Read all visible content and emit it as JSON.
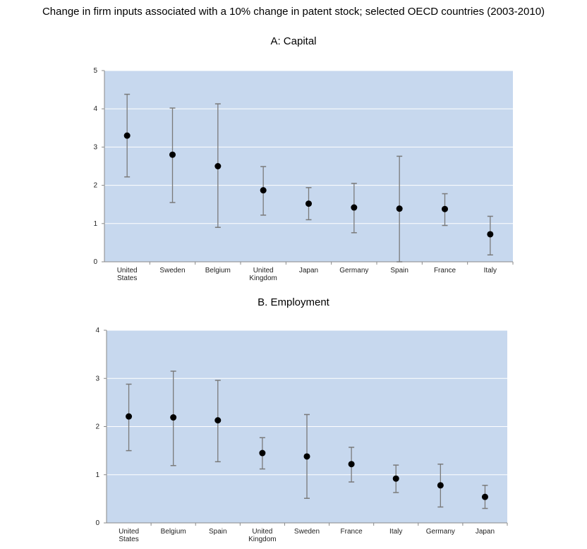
{
  "title": "Change in firm inputs associated with a 10% change in patent stock; selected OECD countries (2003-2010)",
  "colors": {
    "plot_bg": "#c7d8ee",
    "gridline": "#ffffff",
    "marker": "#000000",
    "errorbar": "#7a7a7a",
    "axis": "#888888"
  },
  "chart_data": [
    {
      "type": "scatter",
      "title": "A: Capital",
      "ylim": [
        0,
        5
      ],
      "yticks": [
        "0",
        "1",
        "2",
        "3",
        "4",
        "5"
      ],
      "grid": true,
      "categories": [
        "United States",
        "Sweden",
        "Belgium",
        "United Kingdom",
        "Japan",
        "Germany",
        "Spain",
        "France",
        "Italy"
      ],
      "category_labels": [
        [
          "United",
          "States"
        ],
        [
          "Sweden"
        ],
        [
          "Belgium"
        ],
        [
          "United",
          "Kingdom"
        ],
        [
          "Japan"
        ],
        [
          "Germany"
        ],
        [
          "Spain"
        ],
        [
          "France"
        ],
        [
          "Italy"
        ]
      ],
      "values": [
        3.3,
        2.8,
        2.5,
        1.87,
        1.52,
        1.42,
        1.39,
        1.38,
        0.72
      ],
      "lower": [
        2.22,
        1.55,
        0.9,
        1.22,
        1.1,
        0.76,
        0.0,
        0.95,
        0.18
      ],
      "upper": [
        4.38,
        4.02,
        4.13,
        2.49,
        1.94,
        2.05,
        2.76,
        1.78,
        1.19
      ]
    },
    {
      "type": "scatter",
      "title": "B. Employment",
      "ylim": [
        0,
        4
      ],
      "yticks": [
        "0",
        "1",
        "2",
        "3",
        "4"
      ],
      "grid": true,
      "categories": [
        "United States",
        "Belgium",
        "Spain",
        "United Kingdom",
        "Sweden",
        "France",
        "Italy",
        "Germany",
        "Japan"
      ],
      "category_labels": [
        [
          "United",
          "States"
        ],
        [
          "Belgium"
        ],
        [
          "Spain"
        ],
        [
          "United",
          "Kingdom"
        ],
        [
          "Sweden"
        ],
        [
          "France"
        ],
        [
          "Italy"
        ],
        [
          "Germany"
        ],
        [
          "Japan"
        ]
      ],
      "values": [
        2.21,
        2.19,
        2.13,
        1.45,
        1.38,
        1.22,
        0.92,
        0.78,
        0.54
      ],
      "lower": [
        1.5,
        1.19,
        1.27,
        1.12,
        0.51,
        0.85,
        0.63,
        0.33,
        0.3
      ],
      "upper": [
        2.88,
        3.15,
        2.96,
        1.77,
        2.25,
        1.57,
        1.2,
        1.22,
        0.78
      ]
    }
  ]
}
